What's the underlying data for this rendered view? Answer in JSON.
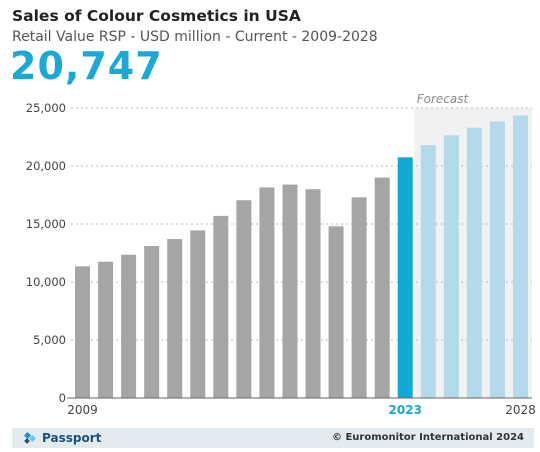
{
  "header": {
    "title": "Sales of Colour Cosmetics in USA",
    "subtitle": "Retail Value RSP - USD million - Current - 2009-2028",
    "headline_value": "20,747"
  },
  "chart_data": {
    "type": "bar",
    "x": [
      2009,
      2010,
      2011,
      2012,
      2013,
      2014,
      2015,
      2016,
      2017,
      2018,
      2019,
      2020,
      2021,
      2022,
      2023,
      2024,
      2025,
      2026,
      2027,
      2028
    ],
    "values": [
      11350,
      11750,
      12350,
      13100,
      13700,
      14450,
      15700,
      17050,
      18150,
      18400,
      18000,
      14800,
      17300,
      19000,
      20747,
      21800,
      22650,
      23300,
      23850,
      24350
    ],
    "x_tick_labels": [
      "2009",
      "2023",
      "2028"
    ],
    "ylim": [
      0,
      25000
    ],
    "y_ticks": [
      0,
      5000,
      10000,
      15000,
      20000,
      25000
    ],
    "y_tick_labels": [
      "0",
      "5,000",
      "10,000",
      "15,000",
      "20,000",
      "25,000"
    ],
    "current_year": 2023,
    "forecast_start": 2024,
    "forecast_label": "Forecast",
    "grid": true,
    "colors": {
      "historic": "#a5a5a6",
      "current": "#10a8d4",
      "forecast": "#b3daeb",
      "forecast_band": "#f1f1f1",
      "current_tick": "#1aa9d6"
    }
  },
  "footer": {
    "brand": "Passport",
    "brand_icon": "passport-logo-icon",
    "copyright": "© Euromonitor International 2024"
  }
}
